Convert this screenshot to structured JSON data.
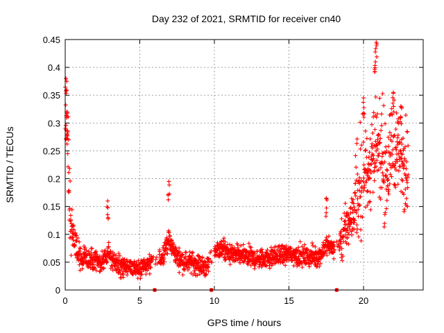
{
  "chart_data": {
    "type": "scatter",
    "title": "Day 232 of 2021, SRMTID for receiver cn40",
    "xlabel": "GPS time / hours",
    "ylabel": "SRMTID / TECUs",
    "xlim": [
      0,
      24
    ],
    "ylim": [
      0,
      0.45
    ],
    "xticks": [
      0,
      5,
      10,
      15,
      20
    ],
    "xtick_labels": [
      "0",
      "5",
      "10",
      "15",
      "20"
    ],
    "yticks": [
      0,
      0.05,
      0.1,
      0.15,
      0.2,
      0.25,
      0.3,
      0.35,
      0.4,
      0.45
    ],
    "ytick_labels": [
      "0",
      "0.05",
      "0.1",
      "0.15",
      "0.2",
      "0.25",
      "0.3",
      "0.35",
      "0.4",
      "0.45"
    ],
    "grid": true,
    "marker": "+",
    "color": "#ff0000",
    "series": [
      {
        "name": "SRMTID",
        "profile": {
          "x": [
            0.0,
            0.1,
            0.2,
            0.3,
            0.5,
            0.8,
            1.0,
            1.5,
            2.0,
            2.5,
            2.9,
            3.5,
            4.0,
            4.5,
            5.0,
            5.5,
            6.0,
            6.5,
            6.9,
            7.5,
            8.0,
            8.5,
            9.0,
            9.5,
            10.0,
            10.5,
            11.0,
            12.0,
            13.0,
            14.0,
            15.0,
            16.0,
            17.0,
            17.5,
            18.0,
            18.5,
            19.0,
            19.5,
            20.0,
            20.5,
            20.9,
            21.5,
            22.0,
            22.5,
            22.9
          ],
          "y": [
            0.32,
            0.3,
            0.25,
            0.15,
            0.1,
            0.07,
            0.06,
            0.055,
            0.05,
            0.05,
            0.065,
            0.045,
            0.04,
            0.04,
            0.04,
            0.045,
            0.05,
            0.06,
            0.09,
            0.06,
            0.05,
            0.05,
            0.045,
            0.04,
            0.07,
            0.075,
            0.065,
            0.06,
            0.055,
            0.06,
            0.065,
            0.06,
            0.06,
            0.08,
            0.075,
            0.09,
            0.12,
            0.15,
            0.2,
            0.22,
            0.25,
            0.2,
            0.26,
            0.24,
            0.22
          ]
        },
        "peaks": [
          {
            "x": 0.05,
            "y": 0.38
          },
          {
            "x": 0.1,
            "y": 0.32
          },
          {
            "x": 2.85,
            "y": 0.16
          },
          {
            "x": 6.95,
            "y": 0.195
          },
          {
            "x": 17.5,
            "y": 0.165
          },
          {
            "x": 20.0,
            "y": 0.345
          },
          {
            "x": 20.85,
            "y": 0.445
          },
          {
            "x": 20.8,
            "y": 0.41
          },
          {
            "x": 22.0,
            "y": 0.355
          },
          {
            "x": 22.5,
            "y": 0.33
          }
        ],
        "zero_values": [
          {
            "x": 6.0,
            "y": 0.0
          },
          {
            "x": 9.8,
            "y": 0.0
          },
          {
            "x": 18.2,
            "y": 0.0
          }
        ]
      }
    ]
  }
}
